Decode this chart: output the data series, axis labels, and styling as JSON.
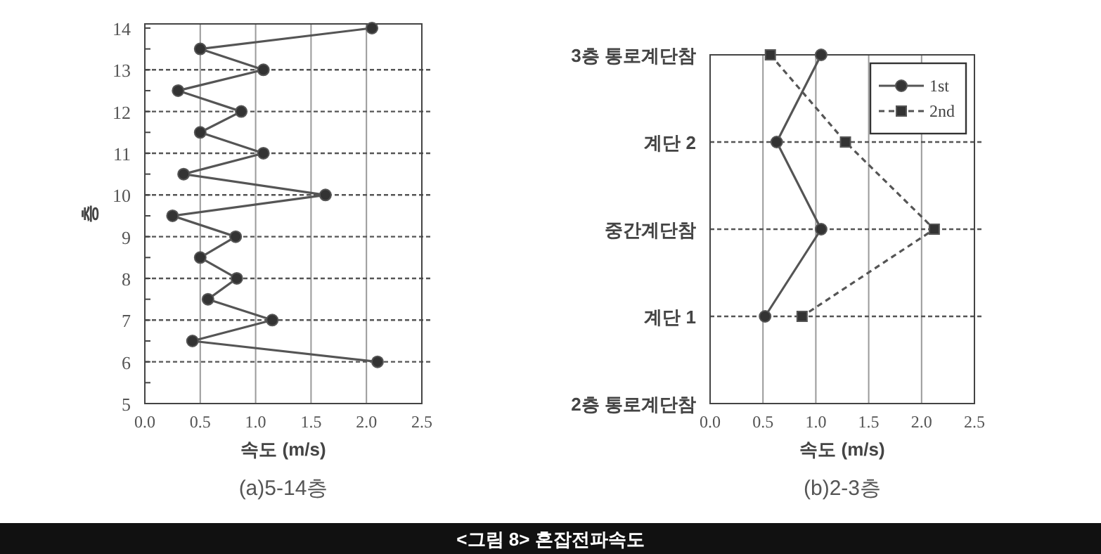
{
  "chart_data": [
    {
      "type": "line",
      "title": "(a)5-14층",
      "xlabel": "속도 (m/s)",
      "ylabel": "층",
      "xlim": [
        0,
        2.5
      ],
      "xticks": [
        {
          "value": 0,
          "label": "0.0"
        },
        0.5,
        {
          "value": 1,
          "label": "1.0"
        },
        1.5,
        {
          "value": 2,
          "label": "2.0"
        },
        2.5
      ],
      "ylim": [
        5,
        14.1
      ],
      "yticks": [
        5,
        6,
        7,
        8,
        9,
        10,
        11,
        12,
        13,
        14
      ],
      "grid": true,
      "marker": "circle",
      "line_style": "solid",
      "color": "#555555",
      "x": [
        2.05,
        0.5,
        1.07,
        0.3,
        0.87,
        0.5,
        1.07,
        0.35,
        1.63,
        0.25,
        0.82,
        0.5,
        0.83,
        0.57,
        1.15,
        0.43,
        2.1
      ],
      "values": [
        14,
        13.5,
        13,
        12.5,
        12,
        11.5,
        11,
        10.5,
        10,
        9.5,
        9,
        8.5,
        8,
        7.5,
        7,
        6.5,
        6
      ],
      "annotations": [
        "<그림 8> 혼잡전파속도"
      ]
    },
    {
      "type": "line",
      "orientation": "horizontal",
      "title": "(b)2-3층",
      "xlabel": "속도 (m/s)",
      "categories": [
        "3층 통로계단참",
        "계단 2",
        "중간계단참",
        "계단 1",
        "2층 통로계단참"
      ],
      "xlim": [
        0,
        2.5
      ],
      "xticks": [
        {
          "value": 0,
          "label": "0.0"
        },
        0.5,
        {
          "value": 1,
          "label": "1.0"
        },
        1.5,
        {
          "value": 2,
          "label": "2.0"
        },
        2.5
      ],
      "grid": true,
      "legend": "top right",
      "series": [
        {
          "name": "1st",
          "color": "#555555",
          "marker": "circle",
          "line_style": "solid",
          "values": [
            1.05,
            0.63,
            1.05,
            0.52,
            null
          ]
        },
        {
          "name": "2nd",
          "color": "#555555",
          "marker": "square",
          "line_style": "dashed",
          "values": [
            0.57,
            1.28,
            2.12,
            0.87,
            null
          ]
        }
      ]
    }
  ]
}
